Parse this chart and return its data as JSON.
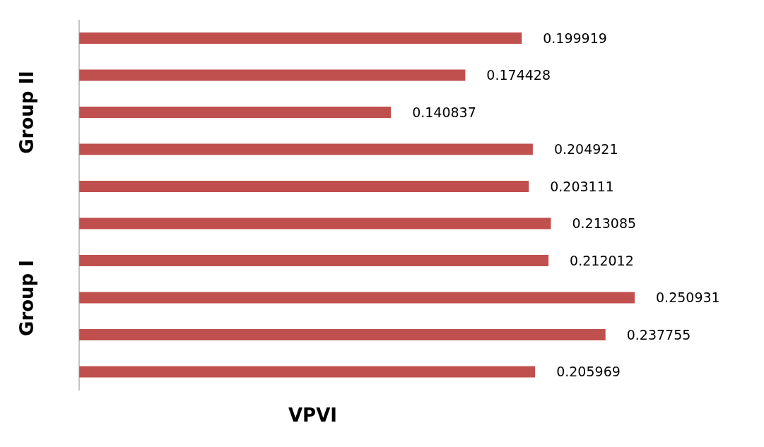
{
  "chart_data": {
    "type": "bar",
    "orientation": "horizontal",
    "xlabel": "VPVI",
    "categories": [
      null,
      null,
      null,
      null,
      null,
      null,
      null,
      null,
      null,
      null
    ],
    "values": [
      0.199919,
      0.174428,
      0.140837,
      0.204921,
      0.203111,
      0.213085,
      0.212012,
      0.250931,
      0.237755,
      0.205969
    ],
    "color": "#c0504d",
    "data_labels": true,
    "annotations": [
      "Group II",
      "Group I"
    ]
  }
}
